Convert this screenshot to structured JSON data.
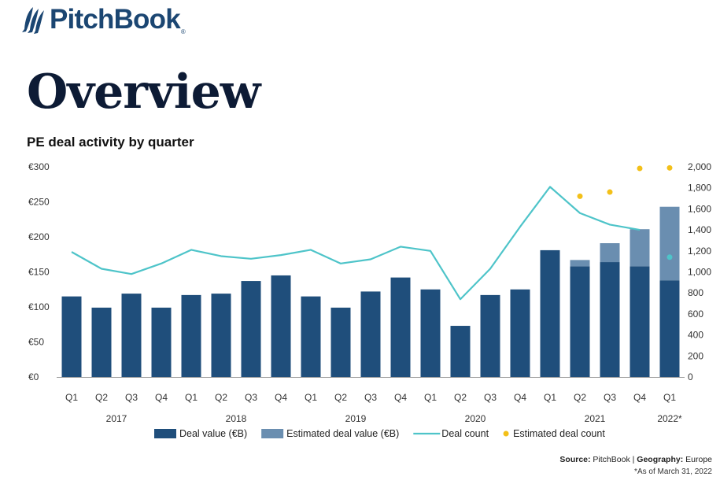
{
  "brand": {
    "name": "PitchBook",
    "reg_mark": "®"
  },
  "heading": "Overview",
  "chart_data": {
    "type": "bar",
    "title": "PE deal activity by quarter",
    "quarters": [
      "Q1",
      "Q2",
      "Q3",
      "Q4",
      "Q1",
      "Q2",
      "Q3",
      "Q4",
      "Q1",
      "Q2",
      "Q3",
      "Q4",
      "Q1",
      "Q2",
      "Q3",
      "Q4",
      "Q1",
      "Q2",
      "Q3",
      "Q4",
      "Q1"
    ],
    "years": [
      {
        "label": "2017",
        "start": 0,
        "end": 3
      },
      {
        "label": "2018",
        "start": 4,
        "end": 7
      },
      {
        "label": "2019",
        "start": 8,
        "end": 11
      },
      {
        "label": "2020",
        "start": 12,
        "end": 15
      },
      {
        "label": "2021",
        "start": 16,
        "end": 19
      },
      {
        "label": "2022*",
        "start": 20,
        "end": 20
      }
    ],
    "y_left": {
      "min": 0,
      "max": 300,
      "ticks": [
        0,
        50,
        100,
        150,
        200,
        250,
        300
      ],
      "tick_labels": [
        "€0",
        "€50",
        "€100",
        "€150",
        "€200",
        "€250",
        "€300"
      ]
    },
    "y_right": {
      "min": 0,
      "max": 2000,
      "ticks": [
        0,
        200,
        400,
        600,
        800,
        1000,
        1200,
        1400,
        1600,
        1800,
        2000
      ],
      "tick_labels": [
        "0",
        "200",
        "400",
        "600",
        "800",
        "1,000",
        "1,200",
        "1,400",
        "1,600",
        "1,800",
        "2,000"
      ]
    },
    "series": [
      {
        "name": "Deal value (€B)",
        "kind": "bar",
        "axis": "left",
        "color": "#1f4e7b",
        "values": [
          115,
          99,
          119,
          99,
          117,
          119,
          137,
          145,
          115,
          99,
          122,
          142,
          125,
          73,
          117,
          125,
          181,
          158,
          164,
          158,
          138
        ]
      },
      {
        "name": "Estimated deal value (€B)",
        "kind": "bar-stack",
        "axis": "left",
        "color": "#6a8eb0",
        "values": [
          null,
          null,
          null,
          null,
          null,
          null,
          null,
          null,
          null,
          null,
          null,
          null,
          null,
          null,
          null,
          null,
          null,
          9,
          27,
          53,
          105
        ]
      },
      {
        "name": "Deal count",
        "kind": "line",
        "axis": "right",
        "color": "#4ec4c9",
        "values": [
          1190,
          1030,
          980,
          1080,
          1210,
          1150,
          1125,
          1160,
          1210,
          1080,
          1120,
          1240,
          1200,
          740,
          1030,
          1430,
          1810,
          1560,
          1450,
          1400,
          null
        ]
      },
      {
        "name": "Estimated deal count",
        "kind": "point",
        "axis": "right",
        "color": "#f3c019",
        "values": [
          null,
          null,
          null,
          null,
          null,
          null,
          null,
          null,
          null,
          null,
          null,
          null,
          null,
          null,
          null,
          null,
          null,
          1720,
          1760,
          1985,
          1990
        ]
      },
      {
        "name": "",
        "kind": "point",
        "axis": "right",
        "color": "#4ec4c9",
        "values": [
          null,
          null,
          null,
          null,
          null,
          null,
          null,
          null,
          null,
          null,
          null,
          null,
          null,
          null,
          null,
          null,
          null,
          null,
          null,
          null,
          1140
        ]
      }
    ],
    "legend_placement": "bottom"
  },
  "source": {
    "label": "Source:",
    "value": "PitchBook",
    "sep": "|",
    "geo_label": "Geography:",
    "geo_value": "Europe"
  },
  "footnote": "*As of March 31, 2022"
}
